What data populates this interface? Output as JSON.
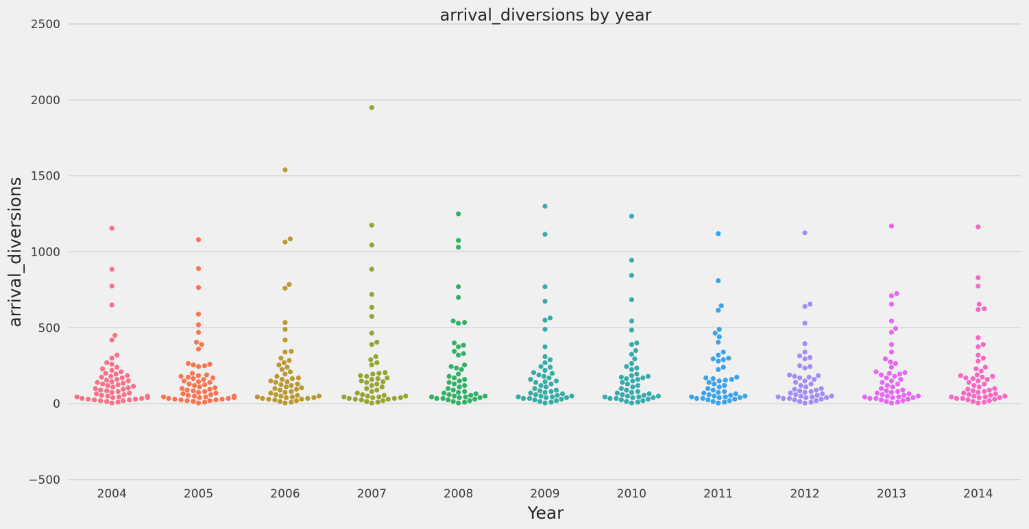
{
  "chart_data": {
    "type": "scatter",
    "subtype": "swarm",
    "title": "arrival_diversions by year",
    "xlabel": "Year",
    "ylabel": "arrival_diversions",
    "ylim": [
      -500,
      2500
    ],
    "yticks": [
      "−500",
      "0",
      "500",
      "1000",
      "1500",
      "2000",
      "2500"
    ],
    "grid": "horizontal",
    "categories": [
      "2004",
      "2005",
      "2006",
      "2007",
      "2008",
      "2009",
      "2010",
      "2011",
      "2012",
      "2013",
      "2014"
    ],
    "colors": [
      "#f77189",
      "#f7754f",
      "#bb9832",
      "#97a431",
      "#32b166",
      "#36ada4",
      "#38aaac",
      "#3ba3ec",
      "#a48cf4",
      "#e866f4",
      "#f668c2"
    ],
    "series": [
      {
        "category": "2004",
        "values": [
          1155,
          885,
          775,
          650,
          450,
          420,
          320,
          300,
          270,
          260,
          240,
          230,
          220,
          210,
          200,
          195,
          185,
          180,
          175,
          170,
          160,
          155,
          150,
          145,
          140,
          135,
          130,
          125,
          120,
          115,
          110,
          105,
          100,
          95,
          90,
          85,
          80,
          75,
          70,
          65,
          60,
          55,
          50,
          50,
          45,
          45,
          40,
          40,
          35,
          35,
          30,
          30,
          25,
          25,
          20,
          20,
          15,
          10,
          5
        ]
      },
      {
        "category": "2005",
        "values": [
          1080,
          890,
          765,
          590,
          520,
          470,
          405,
          390,
          360,
          265,
          260,
          255,
          250,
          245,
          200,
          190,
          185,
          180,
          175,
          170,
          165,
          160,
          150,
          145,
          140,
          130,
          125,
          120,
          110,
          105,
          100,
          95,
          90,
          85,
          80,
          75,
          70,
          65,
          60,
          55,
          50,
          50,
          45,
          45,
          40,
          40,
          35,
          35,
          30,
          30,
          25,
          25,
          20,
          20,
          15,
          10,
          5
        ]
      },
      {
        "category": "2006",
        "values": [
          1540,
          1085,
          1065,
          785,
          760,
          535,
          490,
          420,
          345,
          340,
          300,
          285,
          270,
          255,
          240,
          225,
          210,
          195,
          180,
          170,
          165,
          160,
          150,
          145,
          140,
          130,
          125,
          120,
          110,
          105,
          100,
          95,
          90,
          80,
          75,
          70,
          60,
          55,
          50,
          50,
          45,
          45,
          40,
          40,
          35,
          35,
          30,
          30,
          25,
          20,
          15,
          10,
          5
        ]
      },
      {
        "category": "2007",
        "values": [
          1950,
          1175,
          1045,
          885,
          720,
          635,
          575,
          465,
          405,
          390,
          310,
          290,
          270,
          255,
          205,
          200,
          195,
          185,
          180,
          170,
          165,
          160,
          150,
          145,
          140,
          130,
          120,
          110,
          100,
          90,
          80,
          70,
          60,
          55,
          50,
          50,
          45,
          45,
          40,
          40,
          35,
          35,
          30,
          30,
          25,
          20,
          15,
          10,
          5
        ]
      },
      {
        "category": "2008",
        "values": [
          1250,
          1075,
          1030,
          770,
          700,
          545,
          535,
          530,
          400,
          385,
          375,
          345,
          330,
          320,
          255,
          245,
          235,
          225,
          195,
          180,
          170,
          160,
          150,
          140,
          130,
          120,
          110,
          100,
          90,
          80,
          75,
          70,
          65,
          60,
          55,
          50,
          50,
          45,
          45,
          40,
          40,
          35,
          35,
          30,
          25,
          20,
          15,
          10,
          5
        ]
      },
      {
        "category": "2009",
        "values": [
          1300,
          1115,
          770,
          675,
          565,
          550,
          490,
          375,
          310,
          290,
          270,
          245,
          240,
          220,
          205,
          200,
          190,
          180,
          170,
          160,
          150,
          145,
          140,
          130,
          120,
          110,
          100,
          90,
          85,
          80,
          75,
          70,
          65,
          60,
          55,
          50,
          50,
          45,
          45,
          40,
          40,
          35,
          35,
          30,
          25,
          20,
          15,
          10,
          5
        ]
      },
      {
        "category": "2010",
        "values": [
          1235,
          945,
          845,
          685,
          545,
          485,
          400,
          390,
          350,
          325,
          295,
          265,
          245,
          235,
          225,
          195,
          185,
          180,
          175,
          170,
          165,
          160,
          150,
          140,
          130,
          120,
          110,
          100,
          90,
          80,
          75,
          70,
          65,
          60,
          55,
          50,
          50,
          45,
          45,
          40,
          40,
          35,
          35,
          30,
          25,
          20,
          15,
          10,
          5
        ]
      },
      {
        "category": "2011",
        "values": [
          1120,
          810,
          645,
          615,
          490,
          465,
          440,
          405,
          340,
          320,
          300,
          295,
          290,
          280,
          240,
          225,
          175,
          170,
          165,
          160,
          155,
          150,
          140,
          130,
          120,
          110,
          100,
          90,
          80,
          75,
          70,
          65,
          60,
          55,
          50,
          50,
          45,
          45,
          40,
          40,
          35,
          35,
          30,
          25,
          20,
          15,
          10,
          5
        ]
      },
      {
        "category": "2012",
        "values": [
          1125,
          655,
          640,
          530,
          395,
          340,
          315,
          305,
          295,
          250,
          245,
          235,
          190,
          185,
          180,
          175,
          170,
          160,
          150,
          140,
          130,
          120,
          110,
          100,
          95,
          90,
          85,
          80,
          75,
          70,
          65,
          60,
          55,
          50,
          50,
          45,
          45,
          40,
          40,
          35,
          35,
          30,
          25,
          20,
          15,
          10,
          5
        ]
      },
      {
        "category": "2013",
        "values": [
          1170,
          725,
          710,
          655,
          545,
          495,
          470,
          390,
          340,
          295,
          275,
          265,
          240,
          210,
          205,
          200,
          195,
          190,
          180,
          170,
          160,
          150,
          140,
          130,
          120,
          110,
          100,
          90,
          85,
          80,
          75,
          70,
          65,
          60,
          55,
          50,
          50,
          45,
          45,
          40,
          40,
          35,
          35,
          30,
          25,
          20,
          15,
          10,
          5
        ]
      },
      {
        "category": "2014",
        "values": [
          1165,
          830,
          775,
          655,
          625,
          620,
          435,
          390,
          375,
          320,
          300,
          280,
          240,
          230,
          215,
          190,
          185,
          180,
          175,
          170,
          165,
          160,
          150,
          140,
          130,
          120,
          110,
          100,
          95,
          90,
          85,
          80,
          75,
          70,
          65,
          60,
          55,
          50,
          50,
          45,
          45,
          40,
          40,
          35,
          35,
          30,
          25,
          20,
          15,
          10,
          5
        ]
      }
    ]
  }
}
